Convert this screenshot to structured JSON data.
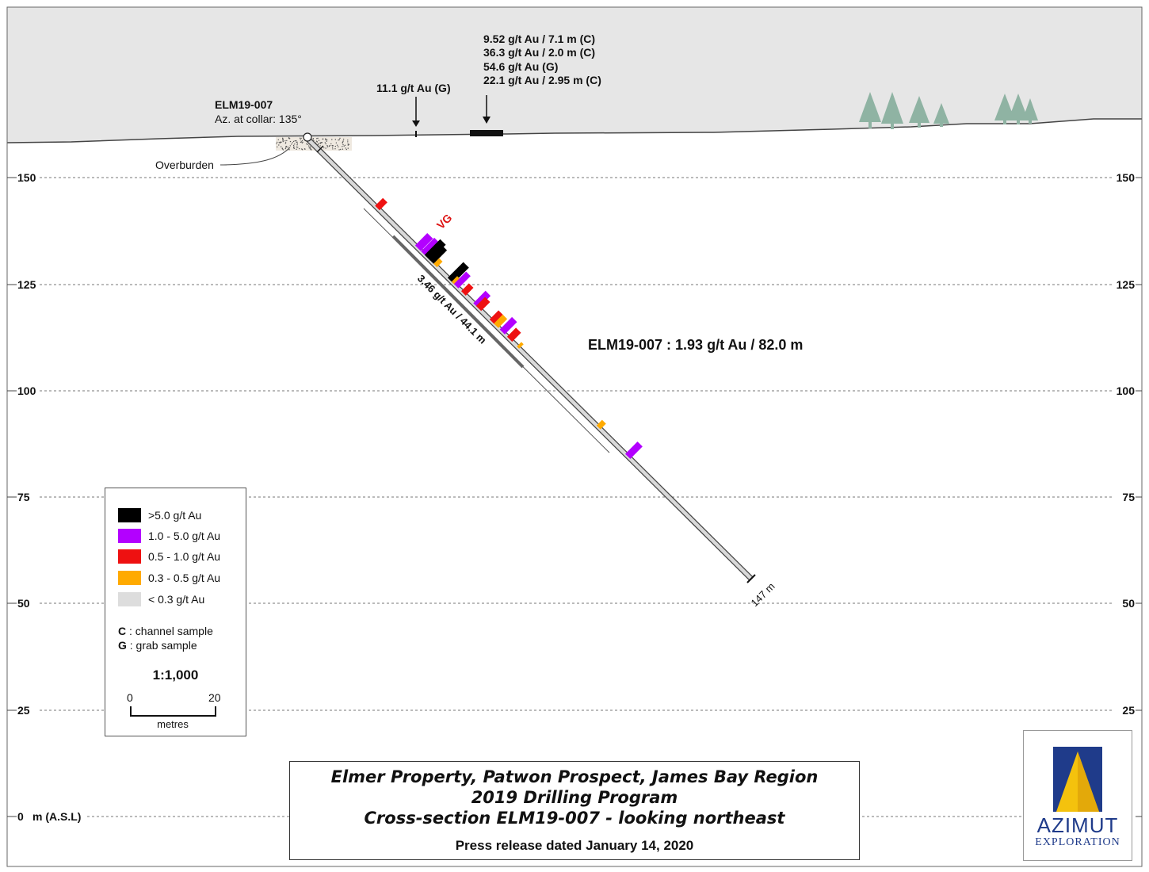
{
  "elevation_labels": [
    "150",
    "125",
    "100",
    "75",
    "50",
    "25",
    "0"
  ],
  "asl_label": "m (A.S.L)",
  "hole": {
    "name": "ELM19-007",
    "azimuth": "Az. at collar: 135°",
    "end_depth": "147 m",
    "overall_intercept": "ELM19-007 : 1.93 g/t Au / 82.0 m",
    "sub_intercept": "3.46 g/t Au / 44.1 m",
    "vg_label": "VG"
  },
  "surface": {
    "overburden_label": "Overburden",
    "sample_single": "11.1 g/t Au (G)",
    "sample_group": [
      "9.52 g/t Au / 7.1 m (C)",
      "36.3 g/t Au / 2.0 m (C)",
      "54.6 g/t Au (G)",
      "22.1 g/t Au / 2.95 m (C)"
    ]
  },
  "legend": {
    "items": [
      {
        "label": ">5.0 g/t Au",
        "color": "#000000"
      },
      {
        "label": "1.0 - 5.0 g/t Au",
        "color": "#b300ff"
      },
      {
        "label": "0.5 - 1.0 g/t Au",
        "color": "#ee1111"
      },
      {
        "label": "0.3 - 0.5 g/t Au",
        "color": "#ffaa00"
      },
      {
        "label": "< 0.3 g/t Au",
        "color": "#dddddd"
      }
    ],
    "notes": [
      {
        "key": "C",
        "text": " : channel sample"
      },
      {
        "key": "G",
        "text": " : grab sample"
      }
    ],
    "scale": "1:1,000",
    "scale_start": "0",
    "scale_end": "20",
    "scale_unit": "metres"
  },
  "title": {
    "line1": "Elmer Property, Patwon Prospect, James Bay Region",
    "line2": "2019 Drilling Program",
    "line3": "Cross-section ELM19-007  - looking northeast",
    "press": "Press release dated January 14, 2020"
  },
  "logo": {
    "name": "AZIMUT",
    "sub": "EXPLORATION",
    "colors": {
      "blue": "#1f3b8a",
      "yellow": "#f4c20d"
    }
  },
  "colors": {
    "sky": "#e6e6e6",
    "tree": "#8fb3a3",
    "grid": "#777777"
  }
}
